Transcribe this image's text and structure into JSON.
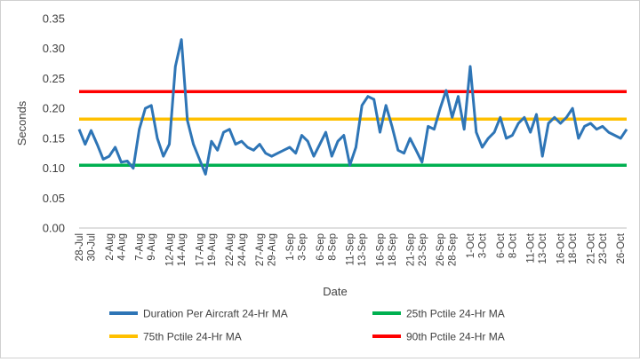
{
  "chart_data": {
    "type": "line",
    "xlabel": "Date",
    "ylabel": "Seconds",
    "ylim": [
      0,
      0.35
    ],
    "y_ticks": [
      "0.00",
      "0.05",
      "0.10",
      "0.15",
      "0.20",
      "0.25",
      "0.30",
      "0.35"
    ],
    "x_tick_labels": [
      "28-Jul",
      "30-Jul",
      "2-Aug",
      "4-Aug",
      "7-Aug",
      "9-Aug",
      "12-Aug",
      "14-Aug",
      "17-Aug",
      "19-Aug",
      "22-Aug",
      "24-Aug",
      "27-Aug",
      "29-Aug",
      "1-Sep",
      "3-Sep",
      "6-Sep",
      "8-Sep",
      "11-Sep",
      "13-Sep",
      "16-Sep",
      "18-Sep",
      "21-Sep",
      "23-Sep",
      "26-Sep",
      "28-Sep",
      "1-Oct",
      "3-Oct",
      "6-Oct",
      "8-Oct",
      "11-Oct",
      "13-Oct",
      "16-Oct",
      "18-Oct",
      "21-Oct",
      "23-Oct",
      "26-Oct"
    ],
    "grid": false,
    "legend_position": "bottom",
    "series": [
      {
        "name": "Duration Per Aircraft 24-Hr MA",
        "color": "#2e75b6",
        "kind": "line",
        "points": [
          [
            "28-Jul",
            0.165
          ],
          [
            "29-Jul",
            0.14
          ],
          [
            "30-Jul",
            0.163
          ],
          [
            "31-Jul",
            0.14
          ],
          [
            "1-Aug",
            0.115
          ],
          [
            "2-Aug",
            0.12
          ],
          [
            "3-Aug",
            0.135
          ],
          [
            "4-Aug",
            0.11
          ],
          [
            "5-Aug",
            0.112
          ],
          [
            "6-Aug",
            0.1
          ],
          [
            "7-Aug",
            0.165
          ],
          [
            "8-Aug",
            0.2
          ],
          [
            "9-Aug",
            0.205
          ],
          [
            "10-Aug",
            0.15
          ],
          [
            "11-Aug",
            0.12
          ],
          [
            "12-Aug",
            0.14
          ],
          [
            "13-Aug",
            0.27
          ],
          [
            "14-Aug",
            0.315
          ],
          [
            "15-Aug",
            0.18
          ],
          [
            "16-Aug",
            0.14
          ],
          [
            "17-Aug",
            0.115
          ],
          [
            "18-Aug",
            0.09
          ],
          [
            "19-Aug",
            0.145
          ],
          [
            "20-Aug",
            0.13
          ],
          [
            "21-Aug",
            0.16
          ],
          [
            "22-Aug",
            0.165
          ],
          [
            "23-Aug",
            0.14
          ],
          [
            "24-Aug",
            0.145
          ],
          [
            "25-Aug",
            0.135
          ],
          [
            "26-Aug",
            0.13
          ],
          [
            "27-Aug",
            0.14
          ],
          [
            "28-Aug",
            0.125
          ],
          [
            "29-Aug",
            0.12
          ],
          [
            "30-Aug",
            0.125
          ],
          [
            "31-Aug",
            0.13
          ],
          [
            "1-Sep",
            0.135
          ],
          [
            "2-Sep",
            0.125
          ],
          [
            "3-Sep",
            0.155
          ],
          [
            "4-Sep",
            0.145
          ],
          [
            "5-Sep",
            0.12
          ],
          [
            "6-Sep",
            0.14
          ],
          [
            "7-Sep",
            0.16
          ],
          [
            "8-Sep",
            0.12
          ],
          [
            "9-Sep",
            0.145
          ],
          [
            "10-Sep",
            0.155
          ],
          [
            "11-Sep",
            0.105
          ],
          [
            "12-Sep",
            0.135
          ],
          [
            "13-Sep",
            0.205
          ],
          [
            "14-Sep",
            0.22
          ],
          [
            "15-Sep",
            0.215
          ],
          [
            "16-Sep",
            0.16
          ],
          [
            "17-Sep",
            0.205
          ],
          [
            "18-Sep",
            0.17
          ],
          [
            "19-Sep",
            0.13
          ],
          [
            "20-Sep",
            0.125
          ],
          [
            "21-Sep",
            0.15
          ],
          [
            "22-Sep",
            0.13
          ],
          [
            "23-Sep",
            0.11
          ],
          [
            "24-Sep",
            0.17
          ],
          [
            "25-Sep",
            0.165
          ],
          [
            "26-Sep",
            0.2
          ],
          [
            "27-Sep",
            0.23
          ],
          [
            "28-Sep",
            0.185
          ],
          [
            "29-Sep",
            0.22
          ],
          [
            "30-Sep",
            0.165
          ],
          [
            "1-Oct",
            0.27
          ],
          [
            "2-Oct",
            0.16
          ],
          [
            "3-Oct",
            0.135
          ],
          [
            "4-Oct",
            0.15
          ],
          [
            "5-Oct",
            0.16
          ],
          [
            "6-Oct",
            0.185
          ],
          [
            "7-Oct",
            0.15
          ],
          [
            "8-Oct",
            0.155
          ],
          [
            "9-Oct",
            0.175
          ],
          [
            "10-Oct",
            0.185
          ],
          [
            "11-Oct",
            0.16
          ],
          [
            "12-Oct",
            0.19
          ],
          [
            "13-Oct",
            0.12
          ],
          [
            "14-Oct",
            0.175
          ],
          [
            "15-Oct",
            0.185
          ],
          [
            "16-Oct",
            0.175
          ],
          [
            "17-Oct",
            0.185
          ],
          [
            "18-Oct",
            0.2
          ],
          [
            "19-Oct",
            0.15
          ],
          [
            "20-Oct",
            0.17
          ],
          [
            "21-Oct",
            0.175
          ],
          [
            "22-Oct",
            0.165
          ],
          [
            "23-Oct",
            0.17
          ],
          [
            "24-Oct",
            0.16
          ],
          [
            "25-Oct",
            0.155
          ],
          [
            "26-Oct",
            0.15
          ],
          [
            "27-Oct",
            0.165
          ]
        ]
      },
      {
        "name": "25th Pctile 24-Hr MA",
        "color": "#00b050",
        "kind": "hline",
        "value": 0.105
      },
      {
        "name": "75th Pctile 24-Hr MA",
        "color": "#ffc000",
        "kind": "hline",
        "value": 0.182
      },
      {
        "name": "90th Pctile 24-Hr MA",
        "color": "#ff0000",
        "kind": "hline",
        "value": 0.228
      }
    ]
  }
}
